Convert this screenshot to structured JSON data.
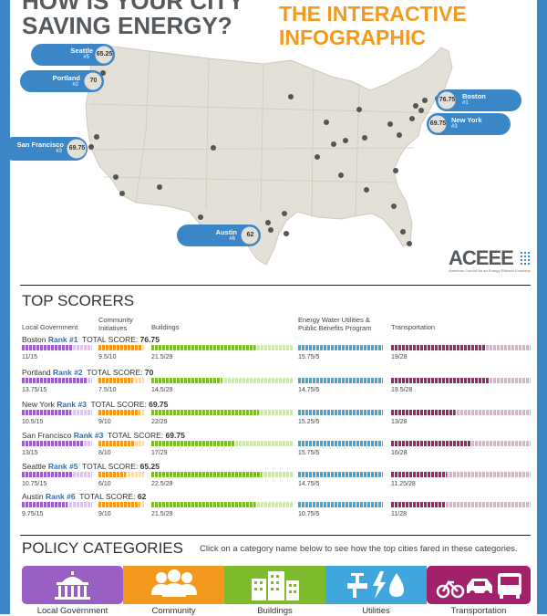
{
  "header": {
    "title_line1": "HOW IS YOUR CITY",
    "title_line2": "SAVING ENERGY?",
    "subtitle_line1": "THE INTERACTIVE",
    "subtitle_line2": "INFOGRAPHIC"
  },
  "logo": {
    "name": "ACEEE",
    "tagline": "American Council for an Energy-Efficient Economy"
  },
  "map_callouts": [
    {
      "city": "Seattle",
      "rank": "#5",
      "score": "65.25"
    },
    {
      "city": "Portland",
      "rank": "#2",
      "score": "70"
    },
    {
      "city": "San Francisco",
      "rank": "#3",
      "score": "69.75"
    },
    {
      "city": "Austin",
      "rank": "#6",
      "score": "62"
    },
    {
      "city": "Boston",
      "rank": "#1",
      "score": "76.75"
    },
    {
      "city": "New York",
      "rank": "#3",
      "score": "69.75"
    }
  ],
  "top_scorers": {
    "title": "TOP SCORERS",
    "columns": [
      {
        "label_line1": "Local Government",
        "label_line2": ""
      },
      {
        "label_line1": "Community",
        "label_line2": "Initiatives"
      },
      {
        "label_line1": "Buildings",
        "label_line2": ""
      },
      {
        "label_line1": "Energy Water Utilities &",
        "label_line2": "Public Benefits Program"
      },
      {
        "label_line1": "Transportation",
        "label_line2": ""
      }
    ],
    "rows": [
      {
        "city": "Boston",
        "rank": "Rank #1",
        "total_label": "TOTAL SCORE:",
        "total": "76.75",
        "values": [
          "11/15",
          "9.5/10",
          "21.5/29",
          "15.75/5",
          "19/28"
        ],
        "fractions": [
          0.73,
          0.95,
          0.74,
          1.0,
          0.68
        ]
      },
      {
        "city": "Portland",
        "rank": "Rank #2",
        "total_label": "TOTAL SCORE:",
        "total": "70",
        "values": [
          "13.75/15",
          "7.5/10",
          "14.5/29",
          "14.75/5",
          "19.5/28"
        ],
        "fractions": [
          0.92,
          0.75,
          0.5,
          1.0,
          0.7
        ]
      },
      {
        "city": "New York",
        "rank": "Rank #3",
        "total_label": "TOTAL SCORE:",
        "total": "69.75",
        "values": [
          "10.5/15",
          "9/10",
          "22/29",
          "15.25/5",
          "13/28"
        ],
        "fractions": [
          0.7,
          0.9,
          0.76,
          1.0,
          0.46
        ]
      },
      {
        "city": "San Francisco",
        "rank": "Rank #3",
        "total_label": "TOTAL SCORE:",
        "total": "69.75",
        "values": [
          "13/15",
          "8/10",
          "17/29",
          "15.75/5",
          "16/28"
        ],
        "fractions": [
          0.87,
          0.8,
          0.59,
          1.0,
          0.57
        ]
      },
      {
        "city": "Seattle",
        "rank": "Rank #5",
        "total_label": "TOTAL SCORE:",
        "total": "65.25",
        "values": [
          "10.75/15",
          "6/10",
          "22.5/29",
          "14.75/5",
          "11.25/28"
        ],
        "fractions": [
          0.72,
          0.6,
          0.78,
          1.0,
          0.4
        ]
      },
      {
        "city": "Austin",
        "rank": "Rank #6",
        "total_label": "TOTAL SCORE:",
        "total": "62",
        "values": [
          "9.75/15",
          "9/10",
          "21.5/29",
          "10.75/5",
          "11/28"
        ],
        "fractions": [
          0.65,
          0.9,
          0.74,
          1.0,
          0.39
        ]
      }
    ]
  },
  "policy": {
    "title": "POLICY CATEGORIES",
    "hint": "Click on a category name below to see how the top cities fared in these categories.",
    "categories": [
      {
        "label": "Local Government",
        "icon": "capitol-building-icon",
        "color": "#9a5fc5"
      },
      {
        "label": "Community",
        "icon": "people-icon",
        "color": "#f39a1e"
      },
      {
        "label": "Buildings",
        "icon": "buildings-icon",
        "color": "#7dbb2d"
      },
      {
        "label": "Utilities",
        "icon": "utilities-icon",
        "color": "#3fa7de"
      },
      {
        "label": "Transportation",
        "icon": "transportation-icon",
        "color": "#a3216b"
      }
    ]
  },
  "colors": {
    "frame": "#3b86c6",
    "accent_orange": "#f39a1e",
    "local_gov": "#9a5fc5",
    "community": "#f39a1e",
    "buildings": "#7dbb2d",
    "utilities": "#3fa7de",
    "transportation": "#a3216b"
  }
}
